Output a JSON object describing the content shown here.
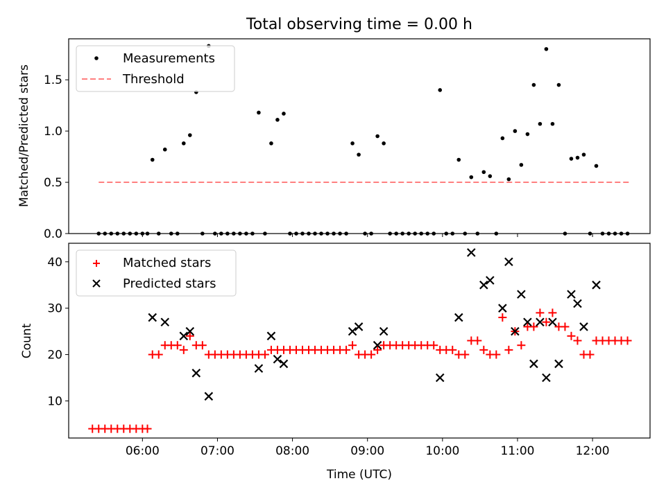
{
  "chart_data": [
    {
      "type": "scatter",
      "title": "Total observing time = 0.00 h",
      "xlabel": "",
      "ylabel": "Matched/Predicted stars",
      "ylim": [
        0,
        1.9
      ],
      "yticks": [
        "0.0",
        "0.5",
        "1.0",
        "1.5"
      ],
      "legend_position": "top-left",
      "legend": [
        "Measurements",
        "Threshold"
      ],
      "threshold": 0.5,
      "threshold_color": "#ff7f7f",
      "series": [
        {
          "name": "Measurements",
          "color": "#000000",
          "points": [
            [
              "05:25",
              0
            ],
            [
              "05:30",
              0
            ],
            [
              "05:35",
              0
            ],
            [
              "05:40",
              0
            ],
            [
              "05:45",
              0
            ],
            [
              "05:50",
              0
            ],
            [
              "05:55",
              0
            ],
            [
              "06:00",
              0
            ],
            [
              "06:04",
              0
            ],
            [
              "06:08",
              0.72
            ],
            [
              "06:13",
              0
            ],
            [
              "06:18",
              0.82
            ],
            [
              "06:23",
              0
            ],
            [
              "06:28",
              0
            ],
            [
              "06:33",
              0.88
            ],
            [
              "06:38",
              0.96
            ],
            [
              "06:43",
              1.38
            ],
            [
              "06:48",
              0
            ],
            [
              "06:53",
              1.83
            ],
            [
              "06:58",
              0
            ],
            [
              "07:03",
              0
            ],
            [
              "07:08",
              0
            ],
            [
              "07:13",
              0
            ],
            [
              "07:18",
              0
            ],
            [
              "07:23",
              0
            ],
            [
              "07:28",
              0
            ],
            [
              "07:33",
              1.18
            ],
            [
              "07:38",
              0
            ],
            [
              "07:43",
              0.88
            ],
            [
              "07:48",
              1.11
            ],
            [
              "07:53",
              1.17
            ],
            [
              "07:58",
              0
            ],
            [
              "08:03",
              0
            ],
            [
              "08:08",
              0
            ],
            [
              "08:13",
              0
            ],
            [
              "08:18",
              0
            ],
            [
              "08:23",
              0
            ],
            [
              "08:28",
              0
            ],
            [
              "08:33",
              0
            ],
            [
              "08:38",
              0
            ],
            [
              "08:43",
              0
            ],
            [
              "08:48",
              0.88
            ],
            [
              "08:53",
              0.77
            ],
            [
              "08:58",
              0
            ],
            [
              "09:03",
              0
            ],
            [
              "09:08",
              0.95
            ],
            [
              "09:13",
              0.88
            ],
            [
              "09:18",
              0
            ],
            [
              "09:23",
              0
            ],
            [
              "09:28",
              0
            ],
            [
              "09:33",
              0
            ],
            [
              "09:38",
              0
            ],
            [
              "09:43",
              0
            ],
            [
              "09:48",
              0
            ],
            [
              "09:53",
              0
            ],
            [
              "09:58",
              1.4
            ],
            [
              "10:03",
              0
            ],
            [
              "10:08",
              0
            ],
            [
              "10:13",
              0.72
            ],
            [
              "10:18",
              0
            ],
            [
              "10:23",
              0.55
            ],
            [
              "10:28",
              0
            ],
            [
              "10:33",
              0.6
            ],
            [
              "10:38",
              0.56
            ],
            [
              "10:43",
              0
            ],
            [
              "10:48",
              0.93
            ],
            [
              "10:53",
              0.53
            ],
            [
              "10:58",
              1.0
            ],
            [
              "11:03",
              0.67
            ],
            [
              "11:08",
              0.97
            ],
            [
              "11:13",
              1.45
            ],
            [
              "11:18",
              1.07
            ],
            [
              "11:23",
              1.8
            ],
            [
              "11:28",
              1.07
            ],
            [
              "11:33",
              1.45
            ],
            [
              "11:38",
              0
            ],
            [
              "11:43",
              0.73
            ],
            [
              "11:48",
              0.74
            ],
            [
              "11:53",
              0.77
            ],
            [
              "11:58",
              0
            ],
            [
              "12:03",
              0.66
            ],
            [
              "12:08",
              0
            ],
            [
              "12:13",
              0
            ],
            [
              "12:18",
              0
            ],
            [
              "12:23",
              0
            ],
            [
              "12:28",
              0
            ]
          ]
        },
        {
          "name": "Threshold",
          "color": "#ff7f7f",
          "points": [
            [
              "05:25",
              0.5
            ],
            [
              "12:30",
              0.5
            ]
          ]
        }
      ]
    },
    {
      "type": "scatter",
      "title": "",
      "xlabel": "Time (UTC)",
      "ylabel": "Count",
      "ylim": [
        2,
        44
      ],
      "yticks": [
        "10",
        "20",
        "30",
        "40"
      ],
      "xticks": [
        "06:00",
        "07:00",
        "08:00",
        "09:00",
        "10:00",
        "11:00",
        "12:00"
      ],
      "legend_position": "top-left",
      "legend": [
        "Matched stars",
        "Predicted stars"
      ],
      "series": [
        {
          "name": "Matched stars",
          "color": "#ff0000",
          "marker": "+",
          "points": [
            [
              "05:20",
              4
            ],
            [
              "05:25",
              4
            ],
            [
              "05:30",
              4
            ],
            [
              "05:35",
              4
            ],
            [
              "05:40",
              4
            ],
            [
              "05:45",
              4
            ],
            [
              "05:50",
              4
            ],
            [
              "05:55",
              4
            ],
            [
              "06:00",
              4
            ],
            [
              "06:04",
              4
            ],
            [
              "06:08",
              20
            ],
            [
              "06:13",
              20
            ],
            [
              "06:18",
              22
            ],
            [
              "06:23",
              22
            ],
            [
              "06:28",
              22
            ],
            [
              "06:33",
              21
            ],
            [
              "06:38",
              24
            ],
            [
              "06:43",
              22
            ],
            [
              "06:48",
              22
            ],
            [
              "06:53",
              20
            ],
            [
              "06:58",
              20
            ],
            [
              "07:03",
              20
            ],
            [
              "07:08",
              20
            ],
            [
              "07:13",
              20
            ],
            [
              "07:18",
              20
            ],
            [
              "07:23",
              20
            ],
            [
              "07:28",
              20
            ],
            [
              "07:33",
              20
            ],
            [
              "07:38",
              20
            ],
            [
              "07:43",
              21
            ],
            [
              "07:48",
              21
            ],
            [
              "07:53",
              21
            ],
            [
              "07:58",
              21
            ],
            [
              "08:03",
              21
            ],
            [
              "08:08",
              21
            ],
            [
              "08:13",
              21
            ],
            [
              "08:18",
              21
            ],
            [
              "08:23",
              21
            ],
            [
              "08:28",
              21
            ],
            [
              "08:33",
              21
            ],
            [
              "08:38",
              21
            ],
            [
              "08:43",
              21
            ],
            [
              "08:48",
              22
            ],
            [
              "08:53",
              20
            ],
            [
              "08:58",
              20
            ],
            [
              "09:03",
              20
            ],
            [
              "09:08",
              21
            ],
            [
              "09:13",
              22
            ],
            [
              "09:18",
              22
            ],
            [
              "09:23",
              22
            ],
            [
              "09:28",
              22
            ],
            [
              "09:33",
              22
            ],
            [
              "09:38",
              22
            ],
            [
              "09:43",
              22
            ],
            [
              "09:48",
              22
            ],
            [
              "09:53",
              22
            ],
            [
              "09:58",
              21
            ],
            [
              "10:03",
              21
            ],
            [
              "10:08",
              21
            ],
            [
              "10:13",
              20
            ],
            [
              "10:18",
              20
            ],
            [
              "10:23",
              23
            ],
            [
              "10:28",
              23
            ],
            [
              "10:33",
              21
            ],
            [
              "10:38",
              20
            ],
            [
              "10:43",
              20
            ],
            [
              "10:48",
              28
            ],
            [
              "10:53",
              21
            ],
            [
              "10:58",
              25
            ],
            [
              "11:03",
              22
            ],
            [
              "11:08",
              26
            ],
            [
              "11:13",
              26
            ],
            [
              "11:18",
              29
            ],
            [
              "11:23",
              27
            ],
            [
              "11:28",
              29
            ],
            [
              "11:33",
              26
            ],
            [
              "11:38",
              26
            ],
            [
              "11:43",
              24
            ],
            [
              "11:48",
              23
            ],
            [
              "11:53",
              20
            ],
            [
              "11:58",
              20
            ],
            [
              "12:03",
              23
            ],
            [
              "12:08",
              23
            ],
            [
              "12:13",
              23
            ],
            [
              "12:18",
              23
            ],
            [
              "12:23",
              23
            ],
            [
              "12:28",
              23
            ]
          ]
        },
        {
          "name": "Predicted stars",
          "color": "#000000",
          "marker": "x",
          "points": [
            [
              "06:08",
              28
            ],
            [
              "06:18",
              27
            ],
            [
              "06:33",
              24
            ],
            [
              "06:38",
              25
            ],
            [
              "06:43",
              16
            ],
            [
              "06:53",
              11
            ],
            [
              "07:33",
              17
            ],
            [
              "07:43",
              24
            ],
            [
              "07:48",
              19
            ],
            [
              "07:53",
              18
            ],
            [
              "08:48",
              25
            ],
            [
              "08:53",
              26
            ],
            [
              "09:08",
              22
            ],
            [
              "09:13",
              25
            ],
            [
              "09:58",
              15
            ],
            [
              "10:13",
              28
            ],
            [
              "10:23",
              42
            ],
            [
              "10:33",
              35
            ],
            [
              "10:38",
              36
            ],
            [
              "10:48",
              30
            ],
            [
              "10:53",
              40
            ],
            [
              "10:58",
              25
            ],
            [
              "11:03",
              33
            ],
            [
              "11:08",
              27
            ],
            [
              "11:13",
              18
            ],
            [
              "11:18",
              27
            ],
            [
              "11:23",
              15
            ],
            [
              "11:28",
              27
            ],
            [
              "11:33",
              18
            ],
            [
              "11:43",
              33
            ],
            [
              "11:48",
              31
            ],
            [
              "11:53",
              26
            ],
            [
              "12:03",
              35
            ]
          ]
        }
      ]
    }
  ]
}
